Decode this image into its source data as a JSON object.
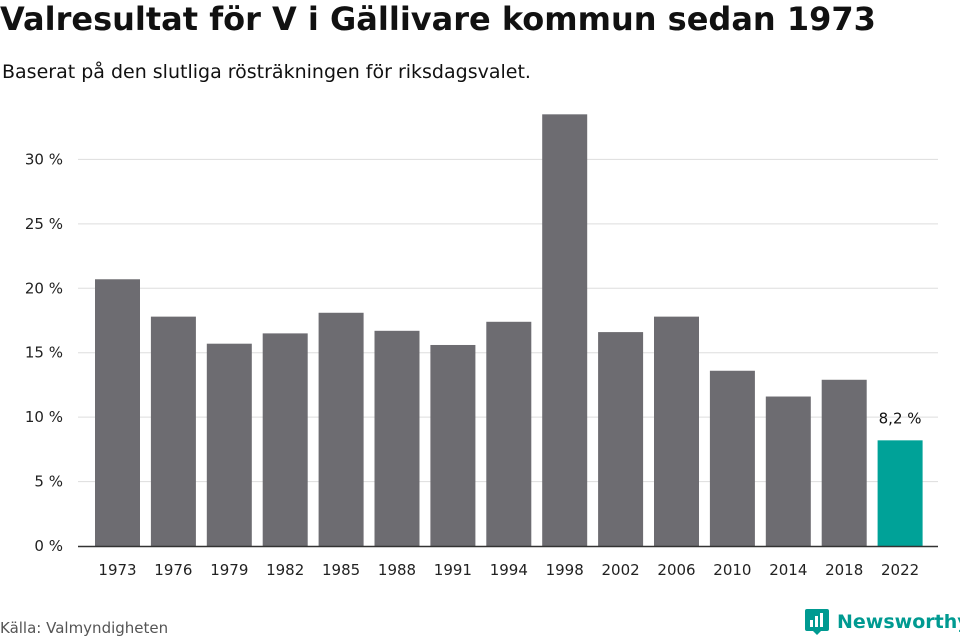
{
  "header": {
    "title": "Valresultat för V i Gällivare kommun sedan 1973",
    "subtitle": "Baserat på den slutliga rösträkningen för riksdagsvalet."
  },
  "footer": {
    "source": "Källa: Valmyndigheten",
    "brand": "Newsworthy"
  },
  "colors": {
    "bar": "#6d6c71",
    "highlight": "#00a298",
    "grid": "#dddddd",
    "axis": "#333333",
    "brand": "#009a91"
  },
  "chart_data": {
    "type": "bar",
    "title": "Valresultat för V i Gällivare kommun sedan 1973",
    "subtitle": "Baserat på den slutliga rösträkningen för riksdagsvalet.",
    "xlabel": "",
    "ylabel": "",
    "categories": [
      "1973",
      "1976",
      "1979",
      "1982",
      "1985",
      "1988",
      "1991",
      "1994",
      "1998",
      "2002",
      "2006",
      "2010",
      "2014",
      "2018",
      "2022"
    ],
    "values": [
      20.7,
      17.8,
      15.7,
      16.5,
      18.1,
      16.7,
      15.6,
      17.4,
      33.5,
      16.6,
      17.8,
      13.6,
      11.6,
      12.9,
      8.2
    ],
    "ylim": [
      0,
      35
    ],
    "yticks": [
      0,
      5,
      10,
      15,
      20,
      25,
      30
    ],
    "ytick_labels": [
      "0 %",
      "5 %",
      "10 %",
      "15 %",
      "20 %",
      "25 %",
      "30 %"
    ],
    "grid": true,
    "legend": "none",
    "highlight_category": "2022",
    "data_labels": [
      {
        "category": "2022",
        "text": "8,2 %"
      }
    ]
  }
}
